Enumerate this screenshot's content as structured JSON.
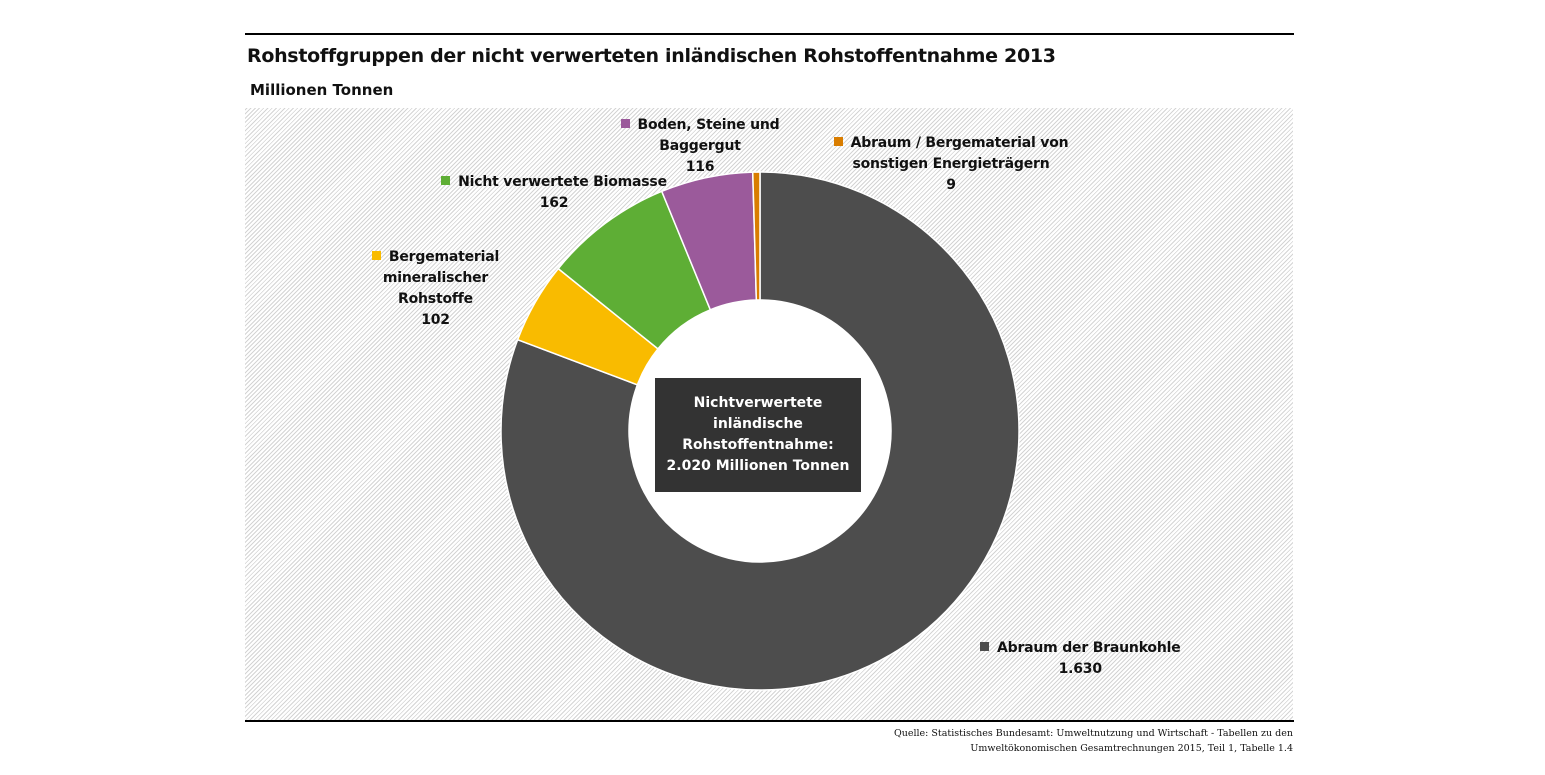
{
  "chart_data": {
    "type": "pie",
    "title": "Rohstoffgruppen der nicht verwerteten inländischen Rohstoffentnahme 2013",
    "unit": "Millionen Tonnen",
    "center_label": [
      "Nichtverwertete",
      "inländische",
      "Rohstoffentnahme:",
      "2.020 Millionen Tonnen"
    ],
    "slices": [
      {
        "name": "Abraum der Braunkohle",
        "value": 1630,
        "value_label": "1.630",
        "color": "#4d4d4d"
      },
      {
        "name": "Bergematerial mineralischer Rohstoffe",
        "value": 102,
        "value_label": "102",
        "color": "#f9bb00"
      },
      {
        "name": "Nicht verwertete Biomasse",
        "value": 162,
        "value_label": "162",
        "color": "#5eae35"
      },
      {
        "name": "Boden, Steine und Baggergut",
        "value": 116,
        "value_label": "116",
        "color": "#9b5a9b"
      },
      {
        "name": "Abraum / Bergematerial von sonstigen Energieträgern",
        "value": 9,
        "value_label": "9",
        "color": "#d97d00"
      }
    ]
  },
  "source": [
    "Quelle: Statistisches Bundesamt: Umweltnutzung und Wirtschaft - Tabellen zu den",
    "Umweltökonomischen Gesamtrechnungen 2015, Teil 1, Tabelle 1.4"
  ],
  "labels": {
    "braun": [
      "Abraum der Braunkohle",
      "1.630"
    ],
    "berg": [
      "Bergematerial mineralischer",
      "Rohstoffe",
      "102"
    ],
    "bio": [
      "Nicht verwertete Biomasse",
      "162"
    ],
    "boden": [
      "Boden, Steine und",
      "Baggergut",
      "116"
    ],
    "sonst": [
      "Abraum / Bergematerial von",
      "sonstigen Energieträgern",
      "9"
    ]
  }
}
